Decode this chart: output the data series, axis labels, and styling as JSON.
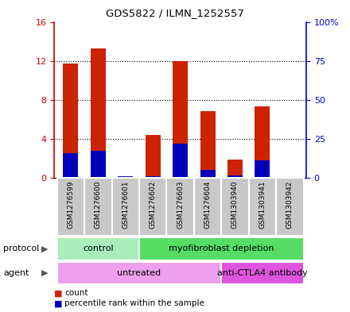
{
  "title": "GDS5822 / ILMN_1252557",
  "samples": [
    "GSM1276599",
    "GSM1276600",
    "GSM1276601",
    "GSM1276602",
    "GSM1276603",
    "GSM1276604",
    "GSM1303940",
    "GSM1303941",
    "GSM1303942"
  ],
  "counts": [
    11.7,
    13.3,
    0.2,
    4.4,
    12.0,
    6.8,
    1.9,
    7.3,
    0.0
  ],
  "percentile_ranks": [
    16.0,
    17.5,
    1.0,
    1.0,
    22.0,
    5.0,
    1.5,
    11.0,
    0.0
  ],
  "ylim_left": [
    0,
    16
  ],
  "ylim_right": [
    0,
    100
  ],
  "yticks_left": [
    0,
    4,
    8,
    12,
    16
  ],
  "yticks_right": [
    0,
    25,
    50,
    75,
    100
  ],
  "ytick_labels_left": [
    "0",
    "4",
    "8",
    "12",
    "16"
  ],
  "ytick_labels_right": [
    "0",
    "25",
    "50",
    "75",
    "100%"
  ],
  "bar_color_red": "#CC2200",
  "bar_color_blue": "#0000BB",
  "bar_width": 0.55,
  "grid_color": "black",
  "protocol_groups": [
    {
      "label": "control",
      "start": 0,
      "end": 2,
      "color": "#AAEEBB"
    },
    {
      "label": "myofibroblast depletion",
      "start": 3,
      "end": 8,
      "color": "#55DD66"
    }
  ],
  "agent_groups": [
    {
      "label": "untreated",
      "start": 0,
      "end": 5,
      "color": "#EEA0EE"
    },
    {
      "label": "anti-CTLA4 antibody",
      "start": 6,
      "end": 8,
      "color": "#DD55DD"
    }
  ],
  "protocol_label": "protocol",
  "agent_label": "agent",
  "legend_items": [
    {
      "color": "#CC2200",
      "label": "count"
    },
    {
      "color": "#0000BB",
      "label": "percentile rank within the sample"
    }
  ],
  "left_axis_color": "#CC0000",
  "right_axis_color": "#0000CC",
  "bg_sample_color": "#C8C8C8",
  "fig_width": 4.4,
  "fig_height": 3.93
}
